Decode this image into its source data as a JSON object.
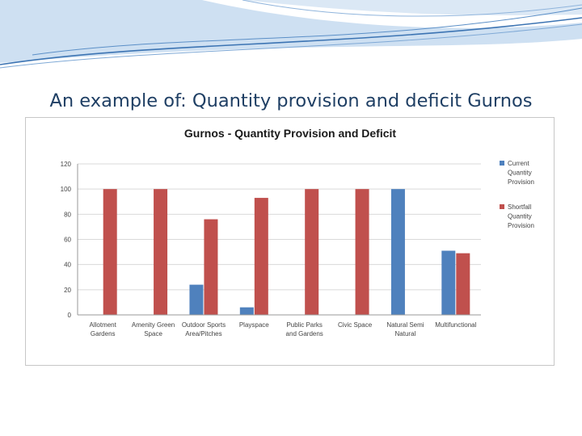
{
  "slide": {
    "title": "An example of: Quantity provision and deficit Gurnos"
  },
  "colors": {
    "title": "#1f3f64",
    "current": "#4f81bd",
    "shortfall": "#c0504d",
    "swoosh_dark": "#3c74b3",
    "swoosh_light": "#b9d2ec"
  },
  "chart_data": {
    "type": "bar",
    "title": "Gurnos - Quantity Provision and Deficit",
    "xlabel": "",
    "ylabel": "",
    "ylim": [
      0,
      120
    ],
    "yticks": [
      "0",
      "20",
      "40",
      "60",
      "80",
      "100",
      "120"
    ],
    "grid": true,
    "legend_position": "right",
    "categories": [
      [
        "Allotment",
        "Gardens"
      ],
      [
        "Amenity Green",
        "Space"
      ],
      [
        "Outdoor Sports",
        "Area/Pitches"
      ],
      [
        "Playspace"
      ],
      [
        "Public Parks",
        "and Gardens"
      ],
      [
        "Civic Space"
      ],
      [
        "Natural Semi",
        "Natural"
      ],
      [
        "Multifunctional"
      ]
    ],
    "series": [
      {
        "name": "Current Quantity Provision",
        "legend_lines": [
          "Current",
          "Quantity",
          "Provision"
        ],
        "color": "#4f81bd",
        "values": [
          0,
          0,
          24,
          6,
          0,
          0,
          100,
          51
        ]
      },
      {
        "name": "Shortfall Quantity Provision",
        "legend_lines": [
          "Shortfall",
          "Quantity",
          "Provision"
        ],
        "color": "#c0504d",
        "values": [
          100,
          100,
          76,
          93,
          100,
          100,
          0,
          49
        ]
      }
    ]
  }
}
